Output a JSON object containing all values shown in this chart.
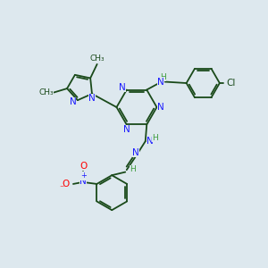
{
  "bg_color": "#dde8ee",
  "bond_color": "#1a4a1a",
  "N_color": "#1a1aff",
  "O_color": "#ff0000",
  "H_color": "#3a9a3a",
  "Cl_color": "#1a4a1a",
  "figsize": [
    3.0,
    3.0
  ],
  "dpi": 100,
  "xlim": [
    0,
    10
  ],
  "ylim": [
    0,
    10
  ]
}
